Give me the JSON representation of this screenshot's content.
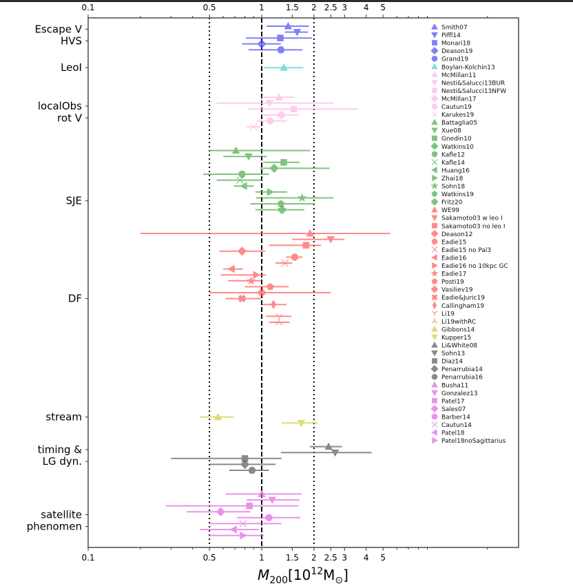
{
  "chart_data": {
    "type": "scatter",
    "subtype": "horizontal-errorbar",
    "title": "",
    "xlabel": "M_200 [10^12 M_sun]",
    "xlabel_parts": {
      "main": "M",
      "sub": "200",
      "bracket_open": "[10",
      "sup": "12",
      "unit": "M",
      "unit_sub": "⊙",
      "bracket_close": "]"
    },
    "xscale": "log",
    "xlim": [
      0.1,
      30
    ],
    "xticks": [
      0.1,
      0.5,
      1,
      1.5,
      2,
      2.5,
      3,
      4,
      5
    ],
    "xtick_labels": [
      "0.1",
      "0.5",
      "1",
      "1.5",
      "2",
      "2.5",
      "3",
      "4",
      "5"
    ],
    "minor_xticks": [
      0.2,
      0.3,
      0.4,
      0.6,
      0.7,
      0.8,
      0.9,
      6,
      7,
      8,
      9,
      20
    ],
    "top_axis_mirrors_bottom": true,
    "reference_lines": [
      {
        "x": 0.5,
        "style": "dotted",
        "color": "#000000"
      },
      {
        "x": 1,
        "style": "dashed",
        "color": "#000000"
      },
      {
        "x": 2,
        "style": "dotted",
        "color": "#000000"
      }
    ],
    "category_labels": [
      {
        "label": "Escape V",
        "row": 1.5
      },
      {
        "label": "HVS",
        "row": 3.5
      },
      {
        "label": "LeoI",
        "row": 8
      },
      {
        "label": "localObs",
        "row": 14.5
      },
      {
        "label": "rot V",
        "row": 16.5
      },
      {
        "label": "SJE",
        "row": 30.5
      },
      {
        "label": "DF",
        "row": 47
      },
      {
        "label": "stream",
        "row": 67
      },
      {
        "label": "timing &",
        "row": 72.5
      },
      {
        "label": "LG dyn.",
        "row": 74.5
      },
      {
        "label": "satellite",
        "row": 83.5
      },
      {
        "label": "phenomen",
        "row": 85.5
      }
    ],
    "legend": {
      "placement": "upper-right inside"
    },
    "series": [
      {
        "name": "Smith07",
        "group": "Escape V",
        "color": "#4b4bf5",
        "marker": "triangle-up",
        "row": 1,
        "x": 1.42,
        "xerr": [
          1.07,
          1.87
        ]
      },
      {
        "name": "Piffl14",
        "group": "Escape V",
        "color": "#4b4bf5",
        "marker": "triangle-down",
        "row": 2,
        "x": 1.6,
        "xerr": [
          1.36,
          1.85
        ]
      },
      {
        "name": "Monari18",
        "group": "Escape V",
        "color": "#4b4bf5",
        "marker": "square",
        "row": 3,
        "x": 1.28,
        "xerr": [
          0.81,
          1.95
        ]
      },
      {
        "name": "Deason19",
        "group": "Escape V",
        "color": "#4b4bf5",
        "marker": "diamond",
        "row": 4,
        "x": 1.0,
        "xerr": [
          0.77,
          1.29
        ]
      },
      {
        "name": "Grand19",
        "group": "HVS",
        "color": "#4b4bf5",
        "marker": "circle",
        "row": 5,
        "x": 1.29,
        "xerr": [
          0.84,
          1.72
        ]
      },
      {
        "name": "Boylan-Kolchin13",
        "group": "LeoI",
        "color": "#4fcfcf",
        "marker": "triangle-up",
        "row": 8,
        "x": 1.34,
        "xerr": [
          1.03,
          1.74
        ]
      },
      {
        "name": "McMillan11",
        "group": "localObs/rot V",
        "color": "#ffb6e6",
        "marker": "triangle-up",
        "row": 13,
        "x": 1.26,
        "xerr": [
          1.0,
          1.53
        ]
      },
      {
        "name": "Nesti&Salucci13BUR",
        "group": "localObs/rot V",
        "color": "#ffb6e6",
        "marker": "triangle-down",
        "row": 14,
        "x": 1.11,
        "xerr": [
          0.55,
          2.6
        ]
      },
      {
        "name": "Nesti&Salucci13NFW",
        "group": "localObs/rot V",
        "color": "#ffb6e6",
        "marker": "square",
        "row": 15,
        "x": 1.53,
        "xerr": [
          0.83,
          3.6
        ]
      },
      {
        "name": "McMillan17",
        "group": "localObs/rot V",
        "color": "#ffb6e6",
        "marker": "diamond",
        "row": 16,
        "x": 1.3,
        "xerr": [
          1.0,
          1.63
        ]
      },
      {
        "name": "Cautun19",
        "group": "localObs/rot V",
        "color": "#ffb6e6",
        "marker": "circle",
        "row": 17,
        "x": 1.12,
        "xerr": [
          0.93,
          1.4
        ]
      },
      {
        "name": "Karukes19",
        "group": "localObs/rot V",
        "color": "#ffb6e6",
        "marker": "x",
        "row": 18,
        "x": 0.9,
        "xerr": [
          0.82,
          0.99
        ]
      },
      {
        "name": "Battaglia05",
        "group": "SJE",
        "color": "#4aaa4a",
        "marker": "triangle-up",
        "row": 22,
        "x": 0.71,
        "xerr": [
          0.5,
          1.9
        ]
      },
      {
        "name": "Xue08",
        "group": "SJE",
        "color": "#4aaa4a",
        "marker": "triangle-down",
        "row": 23,
        "x": 0.84,
        "xerr": [
          0.6,
          1.07
        ]
      },
      {
        "name": "Gnedin10",
        "group": "SJE",
        "color": "#4aaa4a",
        "marker": "square",
        "row": 24,
        "x": 1.34,
        "xerr": [
          1.02,
          1.65
        ]
      },
      {
        "name": "Watkins10",
        "group": "SJE",
        "color": "#4aaa4a",
        "marker": "diamond",
        "row": 25,
        "x": 1.18,
        "xerr": [
          0.98,
          2.46
        ]
      },
      {
        "name": "Kafle12",
        "group": "SJE",
        "color": "#4aaa4a",
        "marker": "circle",
        "row": 26,
        "x": 0.77,
        "xerr": [
          0.46,
          1.1
        ]
      },
      {
        "name": "Kafle14",
        "group": "SJE",
        "color": "#4aaa4a",
        "marker": "x",
        "row": 27,
        "x": 0.75,
        "xerr": [
          0.55,
          1.01
        ]
      },
      {
        "name": "Huang16",
        "group": "SJE",
        "color": "#4aaa4a",
        "marker": "triangle-left",
        "row": 28,
        "x": 0.79,
        "xerr": [
          0.69,
          0.9
        ]
      },
      {
        "name": "Zhai18",
        "group": "SJE",
        "color": "#4aaa4a",
        "marker": "triangle-right",
        "row": 29,
        "x": 1.12,
        "xerr": [
          0.92,
          1.4
        ]
      },
      {
        "name": "Sohn18",
        "group": "SJE",
        "color": "#4aaa4a",
        "marker": "star",
        "row": 30,
        "x": 1.71,
        "xerr": [
          0.93,
          2.6
        ]
      },
      {
        "name": "Watkins19",
        "group": "SJE",
        "color": "#4aaa4a",
        "marker": "pentagon",
        "row": 31,
        "x": 1.29,
        "xerr": [
          0.86,
          2.02
        ]
      },
      {
        "name": "Fritz20",
        "group": "SJE",
        "color": "#4aaa4a",
        "marker": "plus",
        "row": 32,
        "x": 1.31,
        "xerr": [
          0.92,
          1.76
        ]
      },
      {
        "name": "WE99",
        "group": "DF",
        "color": "#ff5959",
        "marker": "triangle-up",
        "row": 36,
        "x": 1.9,
        "xerr": [
          0.2,
          5.5
        ]
      },
      {
        "name": "Sakamoto03 w leo I",
        "group": "DF",
        "color": "#ff5959",
        "marker": "triangle-down",
        "row": 37,
        "x": 2.5,
        "xerr": [
          1.5,
          3.0
        ]
      },
      {
        "name": "Sakamoto03 no leo I",
        "group": "DF",
        "color": "#ff5959",
        "marker": "square",
        "row": 38,
        "x": 1.8,
        "xerr": [
          1.1,
          2.2
        ]
      },
      {
        "name": "Deason12",
        "group": "DF",
        "color": "#ff5959",
        "marker": "diamond",
        "row": 39,
        "x": 0.77,
        "xerr": [
          0.57,
          1.05
        ]
      },
      {
        "name": "Eadie15",
        "group": "DF",
        "color": "#ff5959",
        "marker": "circle",
        "row": 40,
        "x": 1.55,
        "xerr": [
          1.38,
          1.72
        ]
      },
      {
        "name": "Eadie15 no Pal3",
        "group": "DF",
        "color": "#ff5959",
        "marker": "x",
        "row": 41,
        "x": 1.36,
        "xerr": [
          1.2,
          1.5
        ]
      },
      {
        "name": "Eadie16",
        "group": "DF",
        "color": "#ff5959",
        "marker": "triangle-left",
        "row": 42,
        "x": 0.67,
        "xerr": [
          0.6,
          0.78
        ]
      },
      {
        "name": "Eadie16 no 10kpc GC",
        "group": "DF",
        "color": "#ff5959",
        "marker": "triangle-right",
        "row": 43,
        "x": 0.93,
        "xerr": [
          0.58,
          1.06
        ]
      },
      {
        "name": "Eadie17",
        "group": "DF",
        "color": "#ff5959",
        "marker": "star",
        "row": 44,
        "x": 0.87,
        "xerr": [
          0.64,
          1.0
        ]
      },
      {
        "name": "Posti19",
        "group": "DF",
        "color": "#ff5959",
        "marker": "pentagon",
        "row": 45,
        "x": 1.12,
        "xerr": [
          0.8,
          1.43
        ]
      },
      {
        "name": "Vasiliev19",
        "group": "DF",
        "color": "#ff5959",
        "marker": "plus",
        "row": 46,
        "x": 1.0,
        "xerr": [
          0.5,
          2.5
        ]
      },
      {
        "name": "Eadie&Juric19",
        "group": "DF",
        "color": "#ff5959",
        "marker": "cross-fat",
        "row": 47,
        "x": 0.77,
        "xerr": [
          0.62,
          0.99
        ]
      },
      {
        "name": "Callingham19",
        "group": "DF",
        "color": "#ff5959",
        "marker": "thin-diamond",
        "row": 48,
        "x": 1.17,
        "xerr": [
          1.01,
          1.39
        ]
      },
      {
        "name": "Li19",
        "group": "DF",
        "color": "#ff5959",
        "marker": "tri-down",
        "row": 50,
        "x": 1.26,
        "xerr": [
          1.06,
          1.48
        ]
      },
      {
        "name": "Li19withRC",
        "group": "DF",
        "color": "#ff5959",
        "marker": "tri-up",
        "row": 51,
        "x": 1.26,
        "xerr": [
          1.1,
          1.45
        ]
      },
      {
        "name": "Gibbons14",
        "group": "stream",
        "color": "#cfcf3f",
        "marker": "triangle-up",
        "row": 67,
        "x": 0.56,
        "xerr": [
          0.44,
          0.69
        ]
      },
      {
        "name": "Kupper15",
        "group": "stream",
        "color": "#cfcf3f",
        "marker": "triangle-down",
        "row": 68,
        "x": 1.69,
        "xerr": [
          1.3,
          2.1
        ]
      },
      {
        "name": "Li&White08",
        "group": "timing & LG dyn.",
        "color": "#5a5a5a",
        "marker": "triangle-up",
        "row": 72,
        "x": 2.43,
        "xerr": [
          1.89,
          2.9
        ]
      },
      {
        "name": "Sohn13",
        "group": "timing & LG dyn.",
        "color": "#5a5a5a",
        "marker": "triangle-down",
        "row": 73,
        "x": 2.65,
        "xerr": [
          1.29,
          4.3
        ]
      },
      {
        "name": "Diaz14",
        "group": "timing & LG dyn.",
        "color": "#5a5a5a",
        "marker": "square",
        "row": 74,
        "x": 0.8,
        "xerr": [
          0.3,
          1.3
        ]
      },
      {
        "name": "Penarrubia14",
        "group": "timing & LG dyn.",
        "color": "#5a5a5a",
        "marker": "diamond",
        "row": 75,
        "x": 0.8,
        "xerr": [
          0.5,
          1.2
        ]
      },
      {
        "name": "Penarrubia16",
        "group": "timing & LG dyn.",
        "color": "#5a5a5a",
        "marker": "circle",
        "row": 76,
        "x": 0.88,
        "xerr": [
          0.65,
          1.1
        ]
      },
      {
        "name": "Busha11",
        "group": "satellite phenomen",
        "color": "#e264e2",
        "marker": "triangle-up",
        "row": 80,
        "x": 1.0,
        "xerr": [
          0.62,
          1.7
        ]
      },
      {
        "name": "Gonzalez13",
        "group": "satellite phenomen",
        "color": "#e264e2",
        "marker": "triangle-down",
        "row": 81,
        "x": 1.15,
        "xerr": [
          0.82,
          1.65
        ]
      },
      {
        "name": "Patel17",
        "group": "satellite phenomen",
        "color": "#e264e2",
        "marker": "square",
        "row": 82,
        "x": 0.85,
        "xerr": [
          0.28,
          1.63
        ]
      },
      {
        "name": "Sales07",
        "group": "satellite phenomen",
        "color": "#e264e2",
        "marker": "diamond",
        "row": 83,
        "x": 0.58,
        "xerr": [
          0.37,
          0.86
        ]
      },
      {
        "name": "Barber14",
        "group": "satellite phenomen",
        "color": "#e264e2",
        "marker": "circle",
        "row": 84,
        "x": 1.1,
        "xerr": [
          0.72,
          1.67
        ]
      },
      {
        "name": "Cautun14",
        "group": "satellite phenomen",
        "color": "#e264e2",
        "marker": "x",
        "row": 85,
        "x": 0.78,
        "xerr": [
          0.5,
          1.3
        ]
      },
      {
        "name": "Patel18",
        "group": "satellite phenomen",
        "color": "#e264e2",
        "marker": "triangle-left",
        "row": 86,
        "x": 0.69,
        "xerr": [
          0.44,
          0.96
        ]
      },
      {
        "name": "Patel18noSagittarius",
        "group": "satellite phenomen",
        "color": "#e264e2",
        "marker": "triangle-right",
        "row": 87,
        "x": 0.78,
        "xerr": [
          0.5,
          1.03
        ]
      }
    ],
    "grid": false
  }
}
